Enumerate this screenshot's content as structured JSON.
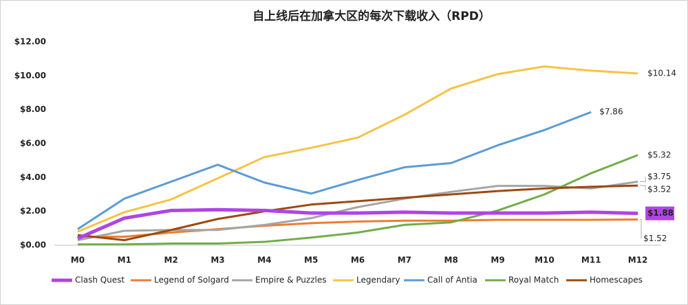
{
  "chart_data": {
    "type": "line",
    "title": "自上线后在加拿大区的每次下载收入（RPD）",
    "categories": [
      "M0",
      "M1",
      "M2",
      "M3",
      "M4",
      "M5",
      "M6",
      "M7",
      "M8",
      "M9",
      "M10",
      "M11",
      "M12"
    ],
    "ylim": [
      0,
      12
    ],
    "yticks": [
      {
        "value": 0,
        "label": "$0.00"
      },
      {
        "value": 2,
        "label": "$2.00"
      },
      {
        "value": 4,
        "label": "$4.00"
      },
      {
        "value": 6,
        "label": "$6.00"
      },
      {
        "value": 8,
        "label": "$8.00"
      },
      {
        "value": 10,
        "label": "$10.00"
      },
      {
        "value": 12,
        "label": "$12.00"
      }
    ],
    "grid": false,
    "legend": "bottom",
    "series": [
      {
        "name": "Clash Quest",
        "color": "#b044e6",
        "values": [
          0.4,
          1.6,
          2.05,
          2.1,
          2.05,
          1.9,
          1.9,
          1.95,
          1.9,
          1.9,
          1.9,
          1.95,
          1.88
        ],
        "value_labels": [
          null,
          null,
          null,
          null,
          null,
          null,
          null,
          null,
          null,
          null,
          null,
          null,
          "$1.88"
        ]
      },
      {
        "name": "Legend of Solgard",
        "color": "#ed7d31",
        "values": [
          0.5,
          0.5,
          0.75,
          0.95,
          1.15,
          1.3,
          1.4,
          1.45,
          1.45,
          1.5,
          1.5,
          1.5,
          1.52
        ],
        "value_labels": [
          null,
          null,
          null,
          null,
          null,
          null,
          null,
          null,
          null,
          null,
          null,
          null,
          "$1.52"
        ]
      },
      {
        "name": "Empire & Puzzles",
        "color": "#a5a5a5",
        "values": [
          0.3,
          0.85,
          0.9,
          0.9,
          1.2,
          1.6,
          2.25,
          2.75,
          3.15,
          3.5,
          3.5,
          3.35,
          3.75
        ],
        "value_labels": [
          null,
          null,
          null,
          null,
          null,
          null,
          null,
          null,
          null,
          null,
          null,
          null,
          "$3.75"
        ]
      },
      {
        "name": "Legendary",
        "color": "#f7c244",
        "values": [
          0.8,
          1.95,
          2.7,
          3.95,
          5.2,
          5.75,
          6.35,
          7.7,
          9.25,
          10.1,
          10.55,
          10.3,
          10.14
        ],
        "value_labels": [
          null,
          null,
          null,
          null,
          null,
          null,
          null,
          null,
          null,
          null,
          null,
          null,
          "$10.14"
        ]
      },
      {
        "name": "Call of Antia",
        "color": "#5b9bd5",
        "values": [
          0.95,
          2.75,
          3.75,
          4.75,
          3.7,
          3.05,
          3.85,
          4.6,
          4.85,
          5.9,
          6.8,
          7.86,
          null
        ],
        "value_labels": [
          null,
          null,
          null,
          null,
          null,
          null,
          null,
          null,
          null,
          null,
          null,
          "$7.86",
          null
        ]
      },
      {
        "name": "Royal Match",
        "color": "#70ad47",
        "values": [
          0.05,
          0.05,
          0.1,
          0.1,
          0.2,
          0.45,
          0.75,
          1.2,
          1.35,
          2.05,
          3.0,
          4.25,
          5.32
        ],
        "value_labels": [
          null,
          null,
          null,
          null,
          null,
          null,
          null,
          null,
          null,
          null,
          null,
          null,
          "$5.32"
        ]
      },
      {
        "name": "Homescapes",
        "color": "#9e480e",
        "values": [
          0.6,
          0.3,
          0.9,
          1.55,
          2.0,
          2.4,
          2.6,
          2.8,
          3.0,
          3.2,
          3.35,
          3.45,
          3.52
        ],
        "value_labels": [
          null,
          null,
          null,
          null,
          null,
          null,
          null,
          null,
          null,
          null,
          null,
          null,
          "$3.52"
        ]
      }
    ]
  }
}
